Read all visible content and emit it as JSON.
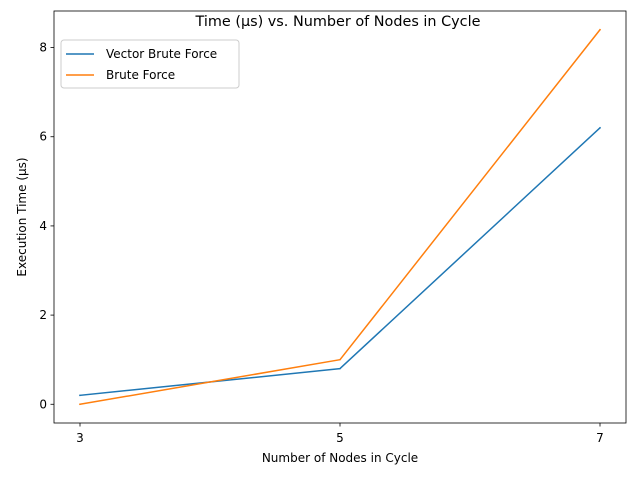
{
  "chart_data": {
    "type": "line",
    "title": "Time (µs) vs. Number of Nodes in Cycle",
    "xlabel": "Number of Nodes in Cycle",
    "ylabel": "Execution Time (µs)",
    "x": [
      3,
      5,
      7
    ],
    "xticks": [
      3,
      5,
      7
    ],
    "yticks": [
      0,
      2,
      4,
      6,
      8
    ],
    "xlim": [
      2.8,
      7.2
    ],
    "ylim": [
      -0.42,
      8.82
    ],
    "grid": false,
    "legend_position": "upper-left",
    "series": [
      {
        "name": "Vector Brute Force",
        "values": [
          0.2,
          0.8,
          6.2
        ],
        "color": "#1f77b4"
      },
      {
        "name": "Brute Force",
        "values": [
          0.0,
          1.0,
          8.4
        ],
        "color": "#ff7f0e"
      }
    ]
  }
}
